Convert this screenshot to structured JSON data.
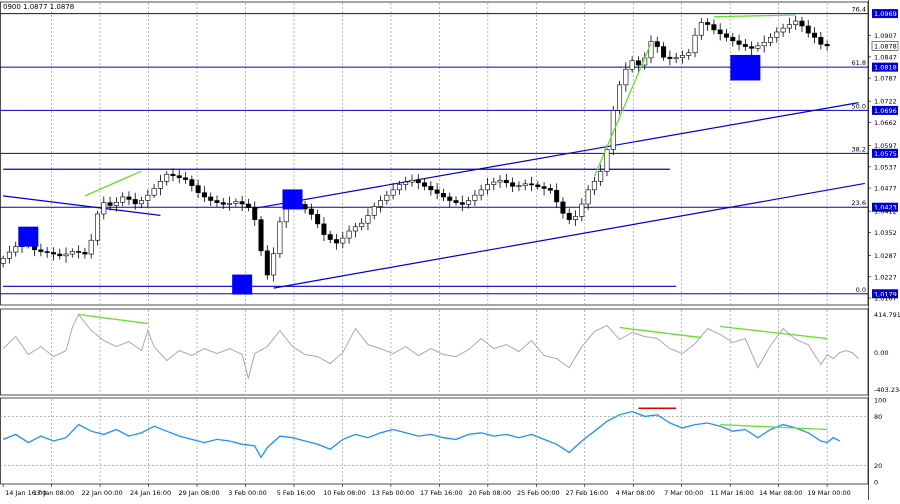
{
  "header": {
    "ohlc_text": "0900 1.0877 1.0878"
  },
  "colors": {
    "background": "#ffffff",
    "candle": "#000000",
    "fib_line": "#0000cc",
    "trend_line": "#0000cc",
    "divergence": "#66dd33",
    "marker": "#0000ff",
    "cci_line": "#aaaaaa",
    "rsi_line": "#1e90ff",
    "rsi_mark": "#dd0000",
    "grid": "#888888",
    "current_price_bg": "#000000",
    "current_price_fg": "#ffffff"
  },
  "chart_data": [
    {
      "type": "candlestick",
      "instrument_hint": "EUR/USD",
      "price_range": [
        1.0153,
        1.0996
      ],
      "current_price": 1.0878,
      "price_ticks": [
        1.0907,
        1.0847,
        1.0787,
        1.0722,
        1.0662,
        1.0597,
        1.0537,
        1.0477,
        1.0412,
        1.0352,
        1.0287,
        1.0227,
        1.0167
      ],
      "fib_levels": [
        {
          "label": "76.4",
          "price": 1.0969
        },
        {
          "label": "61.8",
          "price": 1.0818
        },
        {
          "label": "50.0",
          "price": 1.0696
        },
        {
          "label": "38.2",
          "price": 1.0575
        },
        {
          "label": "23.6",
          "price": 1.0423
        },
        {
          "label": "0.0",
          "price": 1.0179
        }
      ],
      "time_labels": [
        "14 Jan 16:00",
        "17 Jan 08:00",
        "22 Jan 00:00",
        "24 Jan 16:00",
        "29 Jan 08:00",
        "3 Feb 00:00",
        "5 Feb 16:00",
        "10 Feb 08:00",
        "13 Feb 00:00",
        "17 Feb 16:00",
        "20 Feb 08:00",
        "25 Feb 00:00",
        "27 Feb 16:00",
        "4 Mar 08:00",
        "7 Mar 00:00",
        "11 Mar 16:00",
        "14 Mar 08:00",
        "19 Mar 00:00"
      ],
      "price_path": [
        [
          0,
          1.0265
        ],
        [
          2,
          1.03
        ],
        [
          4,
          1.033
        ],
        [
          6,
          1.03
        ],
        [
          8,
          1.0295
        ],
        [
          10,
          1.0285
        ],
        [
          12,
          1.03
        ],
        [
          14,
          1.029
        ],
        [
          15,
          1.034
        ],
        [
          16,
          1.042
        ],
        [
          17,
          1.044
        ],
        [
          18,
          1.0425
        ],
        [
          20,
          1.0455
        ],
        [
          22,
          1.043
        ],
        [
          24,
          1.046
        ],
        [
          26,
          1.05
        ],
        [
          27,
          1.052
        ],
        [
          28,
          1.051
        ],
        [
          30,
          1.05
        ],
        [
          32,
          1.046
        ],
        [
          34,
          1.044
        ],
        [
          36,
          1.043
        ],
        [
          38,
          1.044
        ],
        [
          40,
          1.042
        ],
        [
          41,
          1.038
        ],
        [
          42,
          1.028
        ],
        [
          43,
          1.022
        ],
        [
          44,
          1.031
        ],
        [
          45,
          1.04
        ],
        [
          46,
          1.044
        ],
        [
          48,
          1.043
        ],
        [
          50,
          1.04
        ],
        [
          52,
          1.034
        ],
        [
          54,
          1.032
        ],
        [
          56,
          1.036
        ],
        [
          58,
          1.038
        ],
        [
          60,
          1.043
        ],
        [
          62,
          1.046
        ],
        [
          64,
          1.049
        ],
        [
          66,
          1.05
        ],
        [
          68,
          1.048
        ],
        [
          70,
          1.046
        ],
        [
          72,
          1.044
        ],
        [
          74,
          1.043
        ],
        [
          76,
          1.046
        ],
        [
          78,
          1.049
        ],
        [
          80,
          1.05
        ],
        [
          82,
          1.048
        ],
        [
          84,
          1.049
        ],
        [
          86,
          1.048
        ],
        [
          88,
          1.047
        ],
        [
          89,
          1.043
        ],
        [
          90,
          1.04
        ],
        [
          91,
          1.0385
        ],
        [
          92,
          1.04
        ],
        [
          93,
          1.044
        ],
        [
          94,
          1.048
        ],
        [
          95,
          1.05
        ],
        [
          96,
          1.053
        ],
        [
          97,
          1.06
        ],
        [
          98,
          1.072
        ],
        [
          99,
          1.078
        ],
        [
          100,
          1.082
        ],
        [
          101,
          1.084
        ],
        [
          102,
          1.082
        ],
        [
          103,
          1.085
        ],
        [
          104,
          1.09
        ],
        [
          106,
          1.084
        ],
        [
          108,
          1.0845
        ],
        [
          110,
          1.086
        ],
        [
          111,
          1.092
        ],
        [
          112,
          1.095
        ],
        [
          114,
          1.092
        ],
        [
          116,
          1.09
        ],
        [
          118,
          1.088
        ],
        [
          120,
          1.087
        ],
        [
          122,
          1.089
        ],
        [
          124,
          1.092
        ],
        [
          126,
          1.094
        ],
        [
          127,
          1.095
        ],
        [
          128,
          1.093
        ],
        [
          129,
          1.091
        ],
        [
          130,
          1.09
        ],
        [
          131,
          1.0878
        ]
      ],
      "price_labels": [
        {
          "text": "1.0969",
          "price": 1.0969,
          "style": "fib"
        },
        {
          "text": "1.0907",
          "price": 1.0907,
          "style": "tick"
        },
        {
          "text": "1.0878",
          "price": 1.0878,
          "style": "current"
        },
        {
          "text": "1.0847",
          "price": 1.0847,
          "style": "tick"
        },
        {
          "text": "1.0818",
          "price": 1.0818,
          "style": "fib"
        },
        {
          "text": "1.0787",
          "price": 1.0787,
          "style": "tick"
        },
        {
          "text": "1.0722",
          "price": 1.0722,
          "style": "tick"
        },
        {
          "text": "1.0696",
          "price": 1.0696,
          "style": "fib"
        },
        {
          "text": "1.0662",
          "price": 1.0662,
          "style": "tick"
        },
        {
          "text": "1.0597",
          "price": 1.0597,
          "style": "tick"
        },
        {
          "text": "1.0575",
          "price": 1.0575,
          "style": "fib"
        },
        {
          "text": "1.0537",
          "price": 1.0537,
          "style": "tick"
        },
        {
          "text": "1.0477",
          "price": 1.0477,
          "style": "tick"
        },
        {
          "text": "1.0423",
          "price": 1.0423,
          "style": "fib"
        },
        {
          "text": "1.0412",
          "price": 1.0412,
          "style": "tick"
        },
        {
          "text": "1.0352",
          "price": 1.0352,
          "style": "tick"
        },
        {
          "text": "1.0287",
          "price": 1.0287,
          "style": "tick"
        },
        {
          "text": "1.0227",
          "price": 1.0227,
          "style": "tick"
        },
        {
          "text": "1.0179",
          "price": 1.0179,
          "style": "fib"
        },
        {
          "text": "1.0167",
          "price": 1.0167,
          "style": "tick"
        }
      ],
      "trend_lines": [
        {
          "name": "falling-line",
          "from": [
            0,
            1.0455
          ],
          "to": [
            25,
            1.04
          ]
        },
        {
          "name": "channel-upper-line",
          "from": [
            40,
            1.042
          ],
          "to": [
            136,
            1.0718
          ]
        },
        {
          "name": "channel-lower-line",
          "from": [
            43,
            1.0195
          ],
          "to": [
            137,
            1.049
          ]
        },
        {
          "name": "horizontal-resistance-line",
          "from": [
            0,
            1.053
          ],
          "to": [
            106,
            1.053
          ]
        },
        {
          "name": "horizontal-support-line",
          "from": [
            0,
            1.02
          ],
          "to": [
            107,
            1.02
          ]
        }
      ],
      "divergence_lines": [
        {
          "from": [
            13,
            1.0455
          ],
          "to": [
            22,
            1.0525
          ]
        },
        {
          "from": [
            94,
            1.051
          ],
          "to": [
            103,
            1.0885
          ]
        },
        {
          "from": [
            113,
            1.096
          ],
          "to": [
            126,
            1.0965
          ]
        }
      ],
      "markers": [
        {
          "name": "signal-marker-1",
          "x": 4,
          "price": 1.034
        },
        {
          "name": "signal-marker-2",
          "x": 38,
          "price": 1.0205
        },
        {
          "name": "signal-marker-3",
          "x": 46,
          "price": 1.0445
        },
        {
          "name": "signal-marker-4",
          "x": 118,
          "price": 1.081
        }
      ]
    },
    {
      "type": "line",
      "indicator": "CCI",
      "range": [
        -403.234,
        414.7912
      ],
      "labels": [
        "414.7912",
        "0.00",
        "-403.234"
      ],
      "series_path": [
        [
          0,
          40
        ],
        [
          2,
          160
        ],
        [
          4,
          -20
        ],
        [
          6,
          60
        ],
        [
          8,
          -40
        ],
        [
          10,
          20
        ],
        [
          11,
          250
        ],
        [
          12,
          380
        ],
        [
          14,
          220
        ],
        [
          16,
          120
        ],
        [
          18,
          60
        ],
        [
          20,
          110
        ],
        [
          22,
          20
        ],
        [
          23,
          220
        ],
        [
          24,
          60
        ],
        [
          26,
          -80
        ],
        [
          28,
          20
        ],
        [
          30,
          -30
        ],
        [
          32,
          40
        ],
        [
          34,
          -10
        ],
        [
          36,
          40
        ],
        [
          38,
          -20
        ],
        [
          39,
          -260
        ],
        [
          40,
          -10
        ],
        [
          42,
          60
        ],
        [
          44,
          220
        ],
        [
          46,
          60
        ],
        [
          48,
          -20
        ],
        [
          50,
          -40
        ],
        [
          52,
          -110
        ],
        [
          54,
          0
        ],
        [
          56,
          240
        ],
        [
          58,
          80
        ],
        [
          60,
          40
        ],
        [
          62,
          -10
        ],
        [
          64,
          60
        ],
        [
          66,
          -30
        ],
        [
          68,
          40
        ],
        [
          70,
          -20
        ],
        [
          72,
          -40
        ],
        [
          74,
          30
        ],
        [
          76,
          140
        ],
        [
          78,
          40
        ],
        [
          80,
          80
        ],
        [
          82,
          10
        ],
        [
          84,
          120
        ],
        [
          86,
          -30
        ],
        [
          88,
          -60
        ],
        [
          90,
          -150
        ],
        [
          92,
          60
        ],
        [
          94,
          210
        ],
        [
          96,
          270
        ],
        [
          98,
          130
        ],
        [
          100,
          200
        ],
        [
          102,
          160
        ],
        [
          104,
          140
        ],
        [
          106,
          40
        ],
        [
          108,
          -10
        ],
        [
          110,
          90
        ],
        [
          112,
          240
        ],
        [
          114,
          180
        ],
        [
          116,
          100
        ],
        [
          118,
          140
        ],
        [
          120,
          -150
        ],
        [
          122,
          70
        ],
        [
          124,
          240
        ],
        [
          126,
          130
        ],
        [
          128,
          80
        ],
        [
          130,
          -120
        ],
        [
          131,
          -20
        ],
        [
          132,
          -60
        ],
        [
          133,
          0
        ],
        [
          134,
          20
        ],
        [
          135,
          0
        ],
        [
          136,
          -60
        ]
      ],
      "divergence_lines": [
        {
          "from": [
            12,
            380
          ],
          "to": [
            23,
            290
          ]
        },
        {
          "from": [
            98,
            250
          ],
          "to": [
            111,
            150
          ]
        },
        {
          "from": [
            114,
            260
          ],
          "to": [
            131,
            140
          ]
        }
      ]
    },
    {
      "type": "line",
      "indicator": "RSI",
      "range": [
        0,
        100
      ],
      "gridlines": [
        80,
        20
      ],
      "labels": [
        "100",
        "80",
        "20",
        "0"
      ],
      "series_path": [
        [
          0,
          52
        ],
        [
          2,
          58
        ],
        [
          4,
          48
        ],
        [
          6,
          56
        ],
        [
          8,
          50
        ],
        [
          10,
          54
        ],
        [
          12,
          70
        ],
        [
          14,
          62
        ],
        [
          16,
          58
        ],
        [
          18,
          64
        ],
        [
          20,
          56
        ],
        [
          22,
          60
        ],
        [
          24,
          68
        ],
        [
          26,
          62
        ],
        [
          28,
          56
        ],
        [
          30,
          52
        ],
        [
          32,
          48
        ],
        [
          34,
          52
        ],
        [
          36,
          50
        ],
        [
          38,
          46
        ],
        [
          40,
          44
        ],
        [
          41,
          30
        ],
        [
          42,
          42
        ],
        [
          44,
          56
        ],
        [
          46,
          54
        ],
        [
          48,
          50
        ],
        [
          50,
          46
        ],
        [
          52,
          40
        ],
        [
          54,
          52
        ],
        [
          56,
          58
        ],
        [
          58,
          54
        ],
        [
          60,
          60
        ],
        [
          62,
          64
        ],
        [
          64,
          60
        ],
        [
          66,
          56
        ],
        [
          68,
          58
        ],
        [
          70,
          54
        ],
        [
          72,
          52
        ],
        [
          74,
          58
        ],
        [
          76,
          60
        ],
        [
          78,
          56
        ],
        [
          80,
          58
        ],
        [
          82,
          54
        ],
        [
          84,
          58
        ],
        [
          86,
          52
        ],
        [
          88,
          46
        ],
        [
          90,
          36
        ],
        [
          92,
          50
        ],
        [
          94,
          62
        ],
        [
          96,
          74
        ],
        [
          98,
          82
        ],
        [
          100,
          86
        ],
        [
          102,
          80
        ],
        [
          104,
          82
        ],
        [
          106,
          72
        ],
        [
          108,
          66
        ],
        [
          110,
          70
        ],
        [
          112,
          72
        ],
        [
          114,
          68
        ],
        [
          116,
          62
        ],
        [
          118,
          64
        ],
        [
          120,
          54
        ],
        [
          122,
          64
        ],
        [
          124,
          70
        ],
        [
          126,
          66
        ],
        [
          128,
          60
        ],
        [
          130,
          50
        ],
        [
          131,
          48
        ],
        [
          132,
          54
        ],
        [
          133,
          50
        ]
      ],
      "resistance_mark": {
        "from": [
          101,
          90
        ],
        "to": [
          107,
          90
        ]
      },
      "divergence_line": {
        "from": [
          114,
          70
        ],
        "to": [
          131,
          64
        ]
      }
    }
  ]
}
